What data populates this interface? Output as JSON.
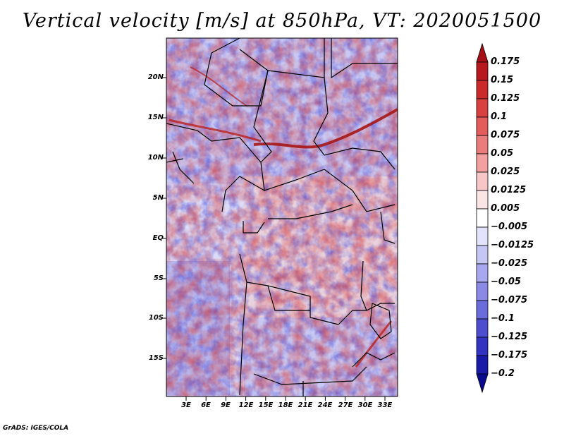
{
  "title": "Vertical velocity [m/s] at 850hPa, VT: 2020051500",
  "credit": "GrADS: IGES/COLA",
  "map": {
    "lat_labels": [
      "20N",
      "15N",
      "10N",
      "5N",
      "EQ",
      "5S",
      "10S",
      "15S"
    ],
    "lon_labels": [
      "3E",
      "6E",
      "9E",
      "12E",
      "15E",
      "18E",
      "21E",
      "24E",
      "27E",
      "30E",
      "33E"
    ]
  },
  "colorbar": {
    "labels": [
      "0.175",
      "0.15",
      "0.125",
      "0.1",
      "0.075",
      "0.05",
      "0.025",
      "0.0125",
      "0.005",
      "−0.005",
      "−0.0125",
      "−0.025",
      "−0.05",
      "−0.075",
      "−0.1",
      "−0.125",
      "−0.175",
      "−0.2"
    ],
    "colors": [
      "#a50f15",
      "#b8191e",
      "#cb2a2a",
      "#d94040",
      "#e35d5d",
      "#eb7c7c",
      "#f2a0a0",
      "#f7c6c6",
      "#fbe4e4",
      "#ffffff",
      "#e3e3fb",
      "#c6c6f5",
      "#a8a8ee",
      "#8a8ae6",
      "#6b6bdc",
      "#4d4dd0",
      "#3333c2",
      "#1a1aa8",
      "#0a0a8c"
    ]
  }
}
